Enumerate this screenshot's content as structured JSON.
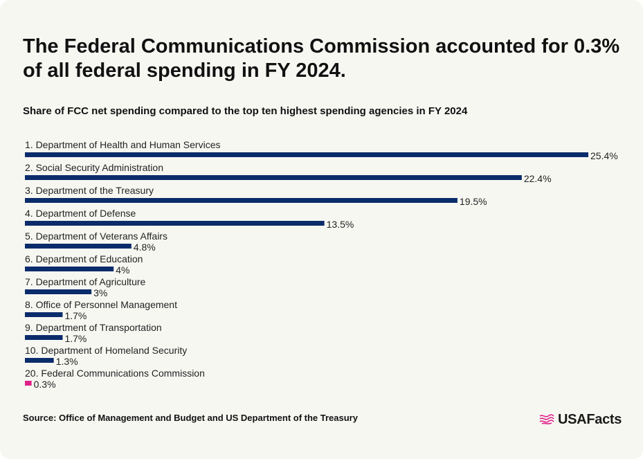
{
  "header": {
    "title": "The Federal Communications Commission accounted for 0.3% of all federal spending in FY 2024.",
    "subtitle": "Share of FCC net spending compared to the top ten highest spending agencies in FY 2024"
  },
  "chart_data": {
    "type": "bar",
    "orientation": "horizontal",
    "categories": [
      "1. Department of Health and Human Services",
      "2. Social Security Administration",
      "3. Department of the Treasury",
      "4. Department of Defense",
      "5. Department of Veterans Affairs",
      "6. Department of Education",
      "7. Department of Agriculture",
      "8. Office of Personnel Management",
      "9. Department of Transportation",
      "10. Department of Homeland Security",
      "20. Federal Communications Commission"
    ],
    "values": [
      25.4,
      22.4,
      19.5,
      13.5,
      4.8,
      4,
      3,
      1.7,
      1.7,
      1.3,
      0.3
    ],
    "value_labels": [
      "25.4%",
      "22.4%",
      "19.5%",
      "13.5%",
      "4.8%",
      "4%",
      "3%",
      "1.7%",
      "1.7%",
      "1.3%",
      "0.3%"
    ],
    "highlight_index": 10,
    "colors": {
      "bar": "#0b2c6b",
      "highlight": "#e0218a"
    },
    "xlim": [
      0,
      25.4
    ],
    "grid": false
  },
  "footer": {
    "source": "Source: Office of Management and Budget and US Department of the Treasury",
    "logo_text": "USAFacts",
    "logo_icon": "usafacts-flag-icon"
  }
}
